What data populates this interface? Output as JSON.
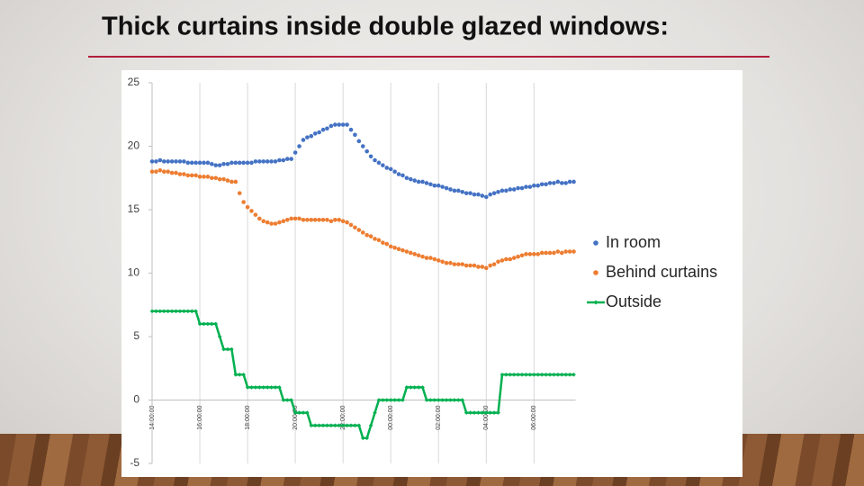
{
  "chart_data": {
    "type": "line",
    "title": "Thick curtains inside double glazed windows:",
    "categories": [
      "14:00:00",
      null,
      null,
      null,
      null,
      null,
      null,
      null,
      null,
      null,
      null,
      null,
      "16:00:00",
      null,
      null,
      null,
      null,
      null,
      null,
      null,
      null,
      null,
      null,
      null,
      "18:00:00",
      null,
      null,
      null,
      null,
      null,
      null,
      null,
      null,
      null,
      null,
      null,
      "20:00:00",
      null,
      null,
      null,
      null,
      null,
      null,
      null,
      null,
      null,
      null,
      null,
      "22:00:00",
      null,
      null,
      null,
      null,
      null,
      null,
      null,
      null,
      null,
      null,
      null,
      "00:00:00",
      null,
      null,
      null,
      null,
      null,
      null,
      null,
      null,
      null,
      null,
      null,
      "02:00:00",
      null,
      null,
      null,
      null,
      null,
      null,
      null,
      null,
      null,
      null,
      null,
      "04:00:00",
      null,
      null,
      null,
      null,
      null,
      null,
      null,
      null,
      null,
      null,
      null,
      "06:00:00",
      null,
      null,
      null,
      null,
      null,
      null,
      null,
      null,
      null,
      null
    ],
    "series": [
      {
        "name": "In room",
        "color": "#4472c4",
        "mode": "markers",
        "values": [
          18.8,
          18.8,
          18.9,
          18.8,
          18.8,
          18.8,
          18.8,
          18.8,
          18.8,
          18.7,
          18.7,
          18.7,
          18.7,
          18.7,
          18.7,
          18.6,
          18.5,
          18.5,
          18.6,
          18.6,
          18.7,
          18.7,
          18.7,
          18.7,
          18.7,
          18.7,
          18.8,
          18.8,
          18.8,
          18.8,
          18.8,
          18.8,
          18.9,
          18.9,
          19.0,
          19.0,
          19.5,
          20.0,
          20.5,
          20.7,
          20.8,
          21.0,
          21.1,
          21.3,
          21.4,
          21.6,
          21.7,
          21.7,
          21.7,
          21.7,
          21.3,
          20.9,
          20.4,
          20.0,
          19.6,
          19.2,
          18.9,
          18.7,
          18.5,
          18.3,
          18.2,
          18.0,
          17.8,
          17.7,
          17.5,
          17.4,
          17.3,
          17.2,
          17.2,
          17.1,
          17.0,
          16.9,
          16.9,
          16.8,
          16.7,
          16.6,
          16.5,
          16.5,
          16.4,
          16.3,
          16.3,
          16.2,
          16.2,
          16.1,
          16.0,
          16.2,
          16.3,
          16.4,
          16.5,
          16.5,
          16.6,
          16.6,
          16.7,
          16.7,
          16.8,
          16.8,
          16.9,
          16.9,
          17.0,
          17.0,
          17.1,
          17.1,
          17.2,
          17.1,
          17.1,
          17.2,
          17.2
        ]
      },
      {
        "name": "Behind curtains",
        "color": "#ed7d31",
        "mode": "markers",
        "values": [
          18.0,
          18.0,
          18.1,
          18.0,
          18.0,
          17.9,
          17.9,
          17.8,
          17.8,
          17.7,
          17.7,
          17.7,
          17.6,
          17.6,
          17.6,
          17.5,
          17.5,
          17.4,
          17.4,
          17.3,
          17.2,
          17.2,
          16.3,
          15.6,
          15.2,
          14.9,
          14.6,
          14.3,
          14.1,
          14.0,
          13.9,
          13.9,
          14.0,
          14.1,
          14.2,
          14.3,
          14.3,
          14.3,
          14.2,
          14.2,
          14.2,
          14.2,
          14.2,
          14.2,
          14.2,
          14.1,
          14.2,
          14.2,
          14.1,
          14.0,
          13.8,
          13.6,
          13.4,
          13.2,
          13.0,
          12.9,
          12.7,
          12.6,
          12.4,
          12.3,
          12.1,
          12.0,
          11.9,
          11.8,
          11.7,
          11.6,
          11.5,
          11.4,
          11.3,
          11.2,
          11.2,
          11.1,
          11.0,
          10.9,
          10.8,
          10.8,
          10.7,
          10.7,
          10.7,
          10.6,
          10.6,
          10.6,
          10.5,
          10.5,
          10.4,
          10.6,
          10.7,
          10.9,
          11.0,
          11.1,
          11.1,
          11.2,
          11.3,
          11.4,
          11.5,
          11.5,
          11.5,
          11.5,
          11.6,
          11.6,
          11.6,
          11.6,
          11.7,
          11.6,
          11.7,
          11.7,
          11.7
        ]
      },
      {
        "name": "Outside",
        "color": "#00b050",
        "mode": "lines+markers",
        "values": [
          7,
          7,
          7,
          7,
          7,
          7,
          7,
          7,
          7,
          7,
          7,
          7,
          6,
          6,
          6,
          6,
          6,
          5,
          4,
          4,
          4,
          2,
          2,
          2,
          1,
          1,
          1,
          1,
          1,
          1,
          1,
          1,
          1,
          0,
          0,
          0,
          -1,
          -1,
          -1,
          -1,
          -2,
          -2,
          -2,
          -2,
          -2,
          -2,
          -2,
          -2,
          -2,
          -2,
          -2,
          -2,
          -2,
          -3,
          -3,
          -2,
          -1,
          0,
          0,
          0,
          0,
          0,
          0,
          0,
          1,
          1,
          1,
          1,
          1,
          0,
          0,
          0,
          0,
          0,
          0,
          0,
          0,
          0,
          0,
          -1,
          -1,
          -1,
          -1,
          -1,
          -1,
          -1,
          -1,
          -1,
          2,
          2,
          2,
          2,
          2,
          2,
          2,
          2,
          2,
          2,
          2,
          2,
          2,
          2,
          2,
          2,
          2,
          2,
          2
        ]
      }
    ],
    "ylim": [
      -5,
      25
    ],
    "yticks": [
      -5,
      0,
      5,
      10,
      15,
      20,
      25
    ],
    "grid": "x",
    "legend": "right"
  }
}
